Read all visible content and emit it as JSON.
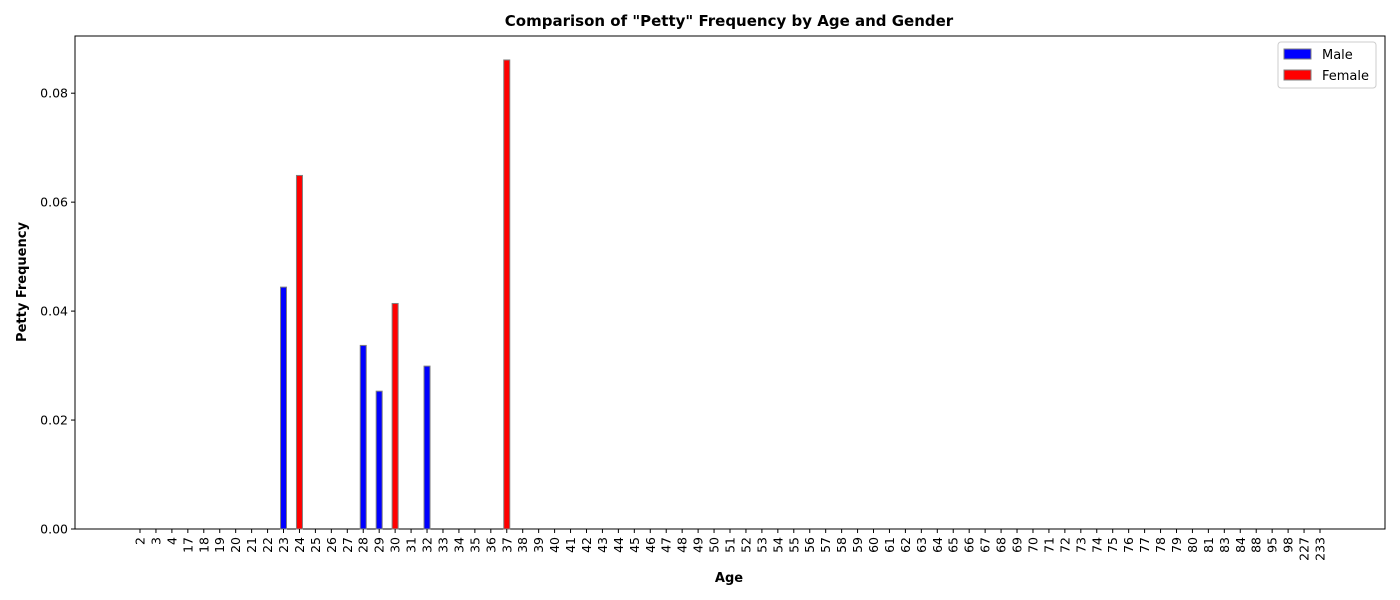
{
  "chart_data": {
    "type": "bar",
    "title": "Comparison of \"Petty\" Frequency by Age and Gender",
    "xlabel": "Age",
    "ylabel": "Petty Frequency",
    "ylim": [
      0,
      0.0905
    ],
    "yticks": [
      "0.00",
      "0.02",
      "0.04",
      "0.06",
      "0.08"
    ],
    "ytick_values": [
      0,
      0.02,
      0.04,
      0.06,
      0.08
    ],
    "categories": [
      "2",
      "3",
      "4",
      "17",
      "18",
      "19",
      "20",
      "21",
      "22",
      "23",
      "24",
      "25",
      "26",
      "27",
      "28",
      "29",
      "30",
      "31",
      "32",
      "33",
      "34",
      "35",
      "36",
      "37",
      "38",
      "39",
      "40",
      "41",
      "42",
      "43",
      "44",
      "45",
      "46",
      "47",
      "48",
      "49",
      "50",
      "51",
      "52",
      "53",
      "54",
      "55",
      "56",
      "57",
      "58",
      "59",
      "60",
      "61",
      "62",
      "63",
      "64",
      "65",
      "66",
      "67",
      "68",
      "69",
      "70",
      "71",
      "72",
      "73",
      "74",
      "75",
      "76",
      "77",
      "78",
      "79",
      "80",
      "81",
      "83",
      "84",
      "88",
      "95",
      "98",
      "227",
      "233"
    ],
    "legend_position": "top-right",
    "grid": false,
    "series": [
      {
        "name": "Male",
        "color": "#0000ff",
        "values": [
          0,
          0,
          0,
          0,
          0,
          0,
          0,
          0,
          0,
          0.0444,
          0,
          0,
          0,
          0,
          0.0337,
          0.0253,
          0,
          0,
          0.0299,
          0,
          0,
          0,
          0,
          0,
          0,
          0,
          0,
          0,
          0,
          0,
          0,
          0,
          0,
          0,
          0,
          0,
          0,
          0,
          0,
          0,
          0,
          0,
          0,
          0,
          0,
          0,
          0,
          0,
          0,
          0,
          0,
          0,
          0,
          0,
          0,
          0,
          0,
          0,
          0,
          0,
          0,
          0,
          0,
          0,
          0,
          0,
          0,
          0,
          0,
          0,
          0,
          0,
          0,
          0,
          0
        ]
      },
      {
        "name": "Female",
        "color": "#ff0000",
        "values": [
          0,
          0,
          0,
          0,
          0,
          0,
          0,
          0,
          0,
          0,
          0.0649,
          0,
          0,
          0,
          0,
          0,
          0.0414,
          0,
          0,
          0,
          0,
          0,
          0,
          0.0861,
          0,
          0,
          0,
          0,
          0,
          0,
          0,
          0,
          0,
          0,
          0,
          0,
          0,
          0,
          0,
          0,
          0,
          0,
          0,
          0,
          0,
          0,
          0,
          0,
          0,
          0,
          0,
          0,
          0,
          0,
          0,
          0,
          0,
          0,
          0,
          0,
          0,
          0,
          0,
          0,
          0,
          0,
          0,
          0,
          0,
          0,
          0,
          0,
          0,
          0,
          0
        ]
      }
    ]
  }
}
